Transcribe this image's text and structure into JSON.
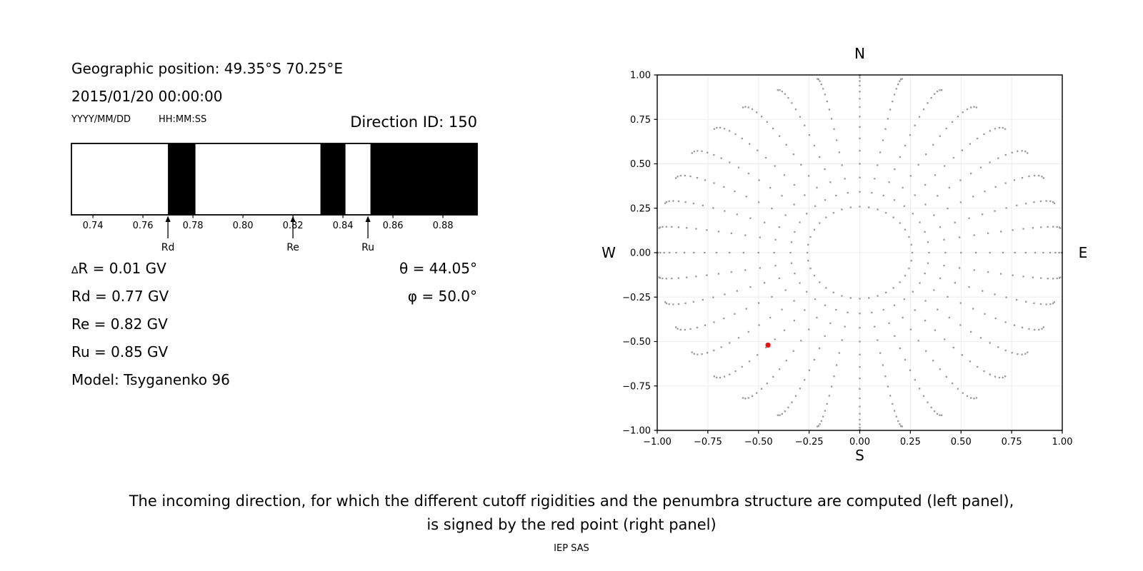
{
  "header": {
    "geographic_position": "Geographic position: 49.35°S 70.25°E",
    "datetime": "2015/01/20 00:00:00",
    "date_format_label": "YYYY/MM/DD",
    "time_format_label": "HH:MM:SS",
    "direction_id_label": "Direction ID: 150"
  },
  "values_panel": {
    "delta_r_prefix": "∆",
    "delta_r_rest": "R = 0.01 GV",
    "rd": "Rd = 0.77 GV",
    "re": "Re = 0.82 GV",
    "ru": "Ru = 0.85 GV",
    "model": "Model: Tsyganenko 96",
    "theta": "θ = 44.05°",
    "phi": "φ = 50.0°"
  },
  "caption": {
    "line1": "The incoming direction, for which the different cutoff rigidities and the penumbra structure are computed (left panel),",
    "line2": "is signed by the red point (right panel)",
    "credit": "IEP SAS"
  },
  "chart_data": [
    {
      "id": "penumbra",
      "type": "bar",
      "description": "Penumbra structure along rigidity axis (GV): black bands = forbidden rigidities, white = allowed",
      "xlim": [
        0.7314,
        0.8937
      ],
      "xticks": [
        0.74,
        0.76,
        0.78,
        0.8,
        0.82,
        0.84,
        0.86,
        0.88
      ],
      "forbidden_bands": [
        [
          0.77,
          0.781
        ],
        [
          0.831,
          0.841
        ],
        [
          0.851,
          0.8937
        ]
      ],
      "arrows": [
        {
          "label": "Rd",
          "x": 0.77
        },
        {
          "label": "Re",
          "x": 0.82
        },
        {
          "label": "Ru",
          "x": 0.85
        }
      ],
      "band_color": "#000000",
      "grid": false
    },
    {
      "id": "direction-map",
      "type": "scatter",
      "description": "Sky map of computed incoming directions (r = sin(zenith), azimuth rays every 10°); red point = selected direction",
      "xlim": [
        -1.0,
        1.0
      ],
      "ylim": [
        -1.0,
        1.0
      ],
      "xticks": [
        -1.0,
        -0.75,
        -0.5,
        -0.25,
        0.0,
        0.25,
        0.5,
        0.75,
        1.0
      ],
      "yticks": [
        -1.0,
        -0.75,
        -0.5,
        -0.25,
        0.0,
        0.25,
        0.5,
        0.75,
        1.0
      ],
      "compass": {
        "top": "N",
        "bottom": "S",
        "left": "W",
        "right": "E"
      },
      "grid_points": {
        "azimuth_deg_start": 0,
        "azimuth_deg_step": 10,
        "azimuth_count": 36,
        "zenith_deg_min": 15,
        "zenith_deg_max": 90,
        "zenith_deg_step": 5,
        "radius_rule": "sin(zenith)",
        "azimuth_drift_deg_max": 6
      },
      "red_point": {
        "x": -0.453,
        "y": -0.52,
        "theta_deg": 44.05,
        "phi_deg": 50.0
      },
      "dot_color": "#8f8f8f",
      "red_color": "#ee1111",
      "grid_line_color": "#ededed",
      "grid": true,
      "legend": false
    }
  ]
}
